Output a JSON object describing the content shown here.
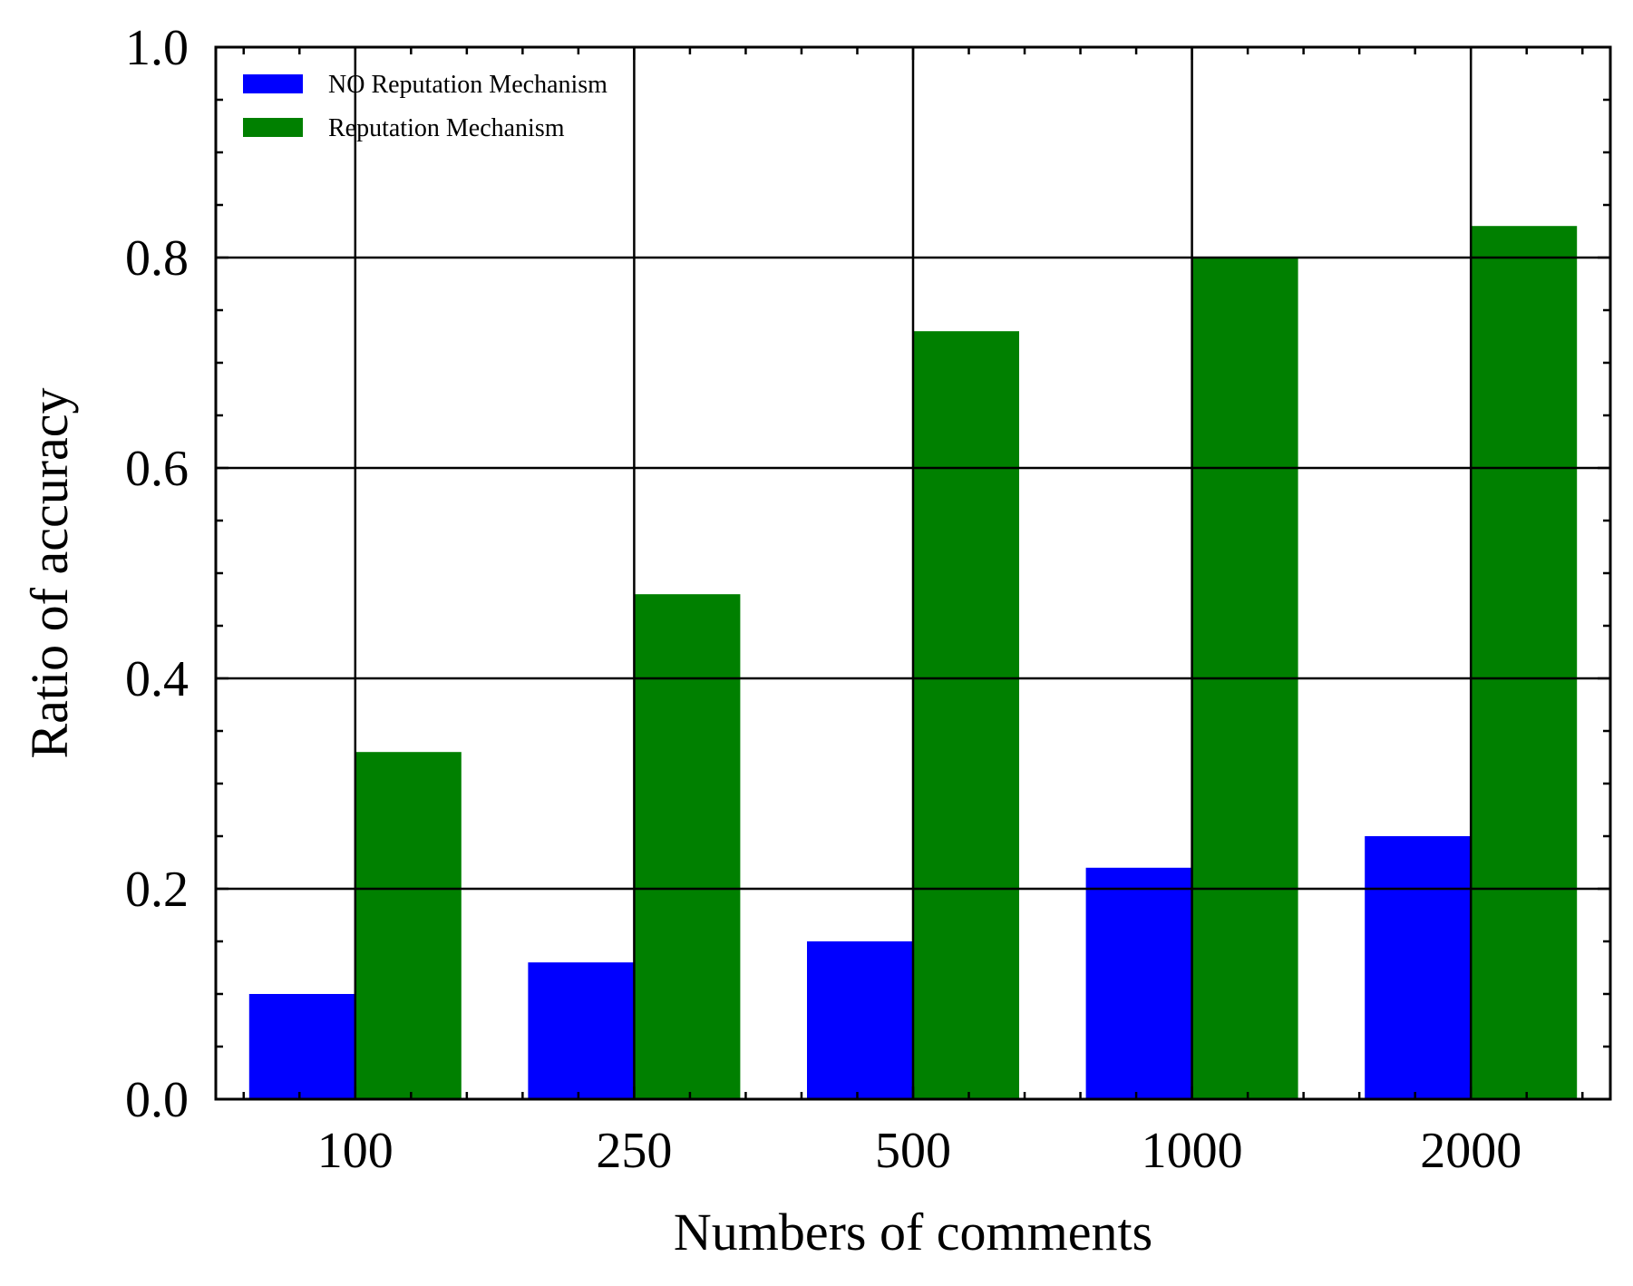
{
  "chart_data": {
    "type": "bar",
    "title": "",
    "xlabel": "Numbers of comments",
    "ylabel": "Ratio of accuracy",
    "categories": [
      "100",
      "250",
      "500",
      "1000",
      "2000"
    ],
    "series": [
      {
        "name": "NO Reputation Mechanism",
        "color": "#0000ff",
        "values": [
          0.1,
          0.13,
          0.15,
          0.22,
          0.25
        ]
      },
      {
        "name": "Reputation Mechanism",
        "color": "#008000",
        "values": [
          0.33,
          0.48,
          0.73,
          0.8,
          0.83
        ]
      }
    ],
    "ylim": [
      0,
      1
    ],
    "yticks": [
      "0.0",
      "0.2",
      "0.4",
      "0.6",
      "0.8",
      "1.0"
    ],
    "grid": true,
    "legend_position": "top-left"
  }
}
